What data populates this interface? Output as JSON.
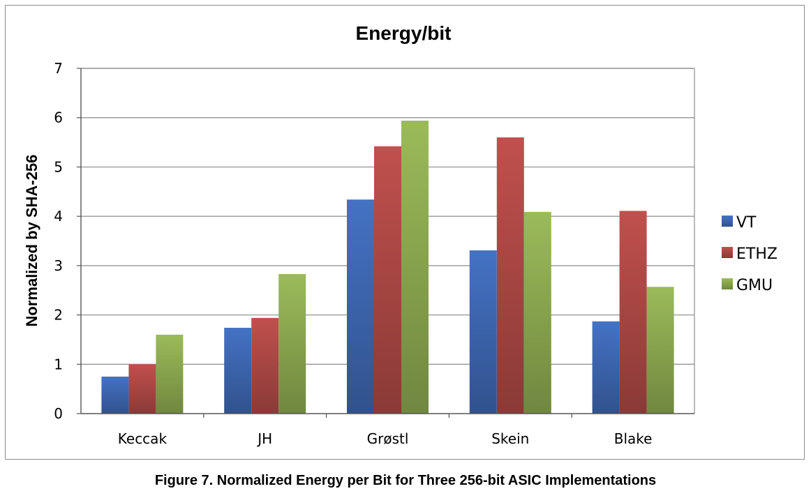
{
  "caption": "Figure 7. Normalized Energy per Bit for Three 256-bit ASIC Implementations",
  "colors": {
    "VT": "#4472c4",
    "ETHZ": "#c0504d",
    "GMU": "#9bbb59",
    "grid": "#8c8c8c",
    "frame": "#8c8c8c"
  },
  "chart_data": {
    "type": "bar",
    "title": "Energy/bit",
    "xlabel": "",
    "ylabel": "Normalized by SHA-256",
    "categories": [
      "Keccak",
      "JH",
      "Grøstl",
      "Skein",
      "Blake"
    ],
    "series": [
      {
        "name": "VT",
        "values": [
          0.75,
          1.74,
          4.34,
          3.31,
          1.87
        ]
      },
      {
        "name": "ETHZ",
        "values": [
          1.0,
          1.94,
          5.42,
          5.6,
          4.11
        ]
      },
      {
        "name": "GMU",
        "values": [
          1.6,
          2.83,
          5.94,
          4.09,
          2.57
        ]
      }
    ],
    "ylim": [
      0,
      7
    ],
    "yticks": [
      "0",
      "1",
      "2",
      "3",
      "4",
      "5",
      "6",
      "7"
    ],
    "grid": true,
    "legend_position": "right"
  }
}
